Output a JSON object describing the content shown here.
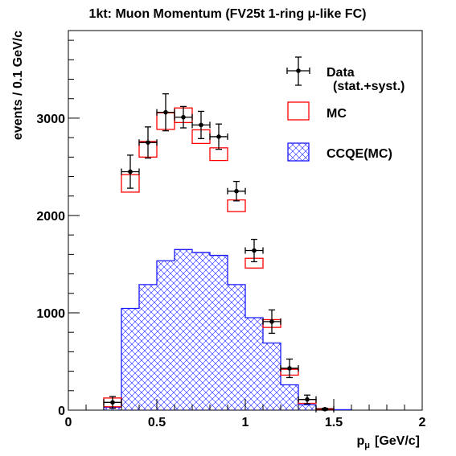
{
  "chart_data": {
    "type": "histogram",
    "title": "1kt: Muon Momentum (FV25t 1-ring μ-like FC)",
    "xlabel": "p",
    "xlabel_sub": "μ",
    "xlabel_unit": "[GeV/c]",
    "ylabel": "events / 0.1 GeV/c",
    "xlim": [
      0,
      2
    ],
    "ylim": [
      0,
      3900
    ],
    "x_ticks": [
      {
        "value": 0,
        "label": "0"
      },
      {
        "value": 0.5,
        "label": "0.5"
      },
      {
        "value": 1,
        "label": "1"
      },
      {
        "value": 1.5,
        "label": "1.5"
      },
      {
        "value": 2,
        "label": "2"
      }
    ],
    "y_ticks": [
      {
        "value": 0,
        "label": "0"
      },
      {
        "value": 1000,
        "label": "1000"
      },
      {
        "value": 2000,
        "label": "2000"
      },
      {
        "value": 3000,
        "label": "3000"
      }
    ],
    "bin_width": 0.1,
    "ccqe_mc": {
      "name": "CCQE(MC)",
      "color": "#1a1aff",
      "bin_edges": [
        0.2,
        0.3,
        0.4,
        0.5,
        0.6,
        0.7,
        0.8,
        0.9,
        1.0,
        1.1,
        1.2,
        1.3,
        1.4,
        1.5,
        1.6
      ],
      "values": [
        30,
        1045,
        1290,
        1535,
        1650,
        1620,
        1590,
        1290,
        950,
        690,
        260,
        55,
        15,
        5
      ]
    },
    "mc": {
      "name": "MC",
      "color": "#ff0000",
      "x": [
        0.25,
        0.35,
        0.45,
        0.55,
        0.65,
        0.75,
        0.85,
        0.95,
        1.05,
        1.15,
        1.25,
        1.35,
        1.45
      ],
      "values": [
        80,
        2330,
        2680,
        2970,
        3030,
        2810,
        2630,
        2100,
        1510,
        890,
        390,
        90,
        10
      ],
      "half_height": [
        45,
        90,
        80,
        85,
        75,
        70,
        65,
        60,
        50,
        40,
        30,
        20,
        5
      ]
    },
    "data": {
      "name": "Data",
      "sublabel": "(stat.+syst.)",
      "color": "#000000",
      "x": [
        0.25,
        0.35,
        0.45,
        0.55,
        0.65,
        0.75,
        0.85,
        0.95,
        1.05,
        1.15,
        1.25,
        1.35,
        1.45
      ],
      "values": [
        80,
        2450,
        2750,
        3060,
        3010,
        2930,
        2810,
        2250,
        1640,
        910,
        430,
        110,
        10
      ],
      "errors": [
        60,
        170,
        160,
        190,
        110,
        140,
        130,
        100,
        115,
        120,
        95,
        45,
        10
      ]
    }
  }
}
